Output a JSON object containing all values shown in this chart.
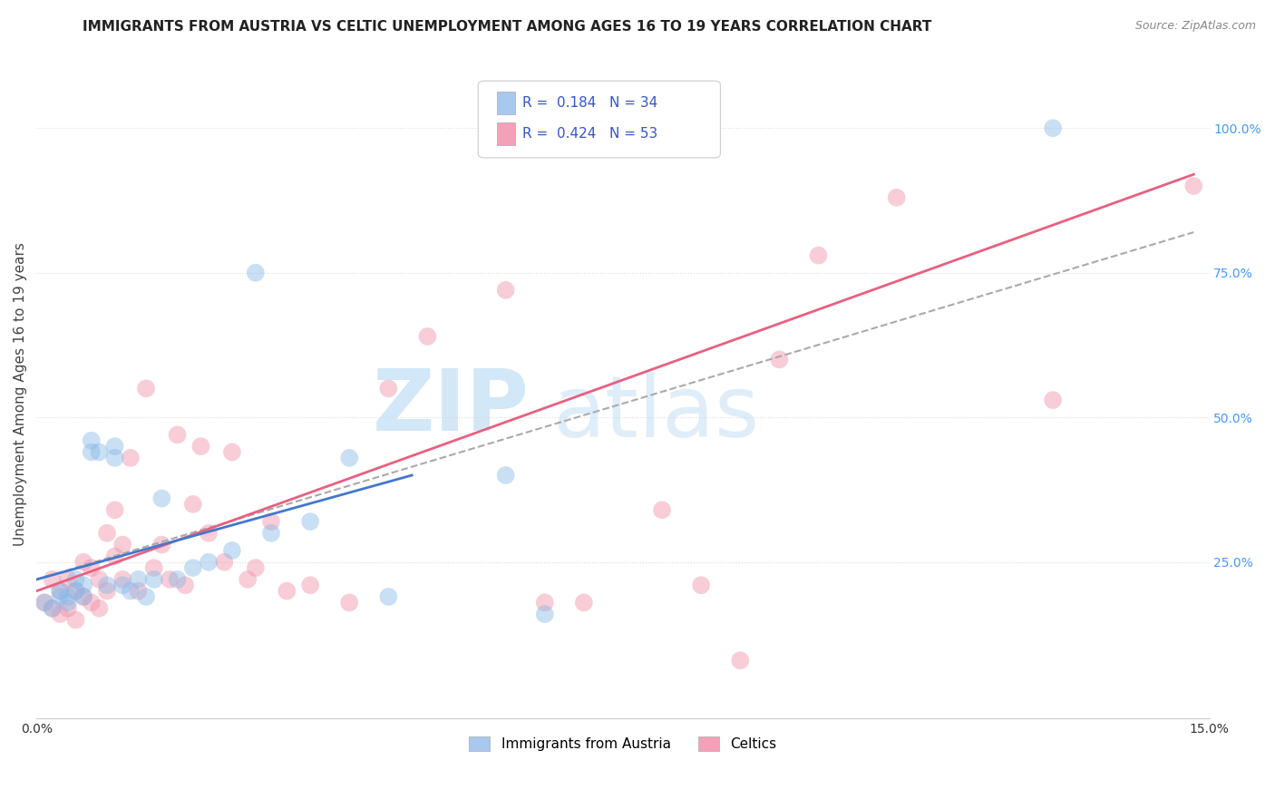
{
  "title": "IMMIGRANTS FROM AUSTRIA VS CELTIC UNEMPLOYMENT AMONG AGES 16 TO 19 YEARS CORRELATION CHART",
  "source": "Source: ZipAtlas.com",
  "ylabel": "Unemployment Among Ages 16 to 19 years",
  "xlim": [
    0.0,
    0.15
  ],
  "ylim": [
    -0.02,
    1.1
  ],
  "xtick_labels": [
    "0.0%",
    "15.0%"
  ],
  "ytick_labels": [
    "25.0%",
    "50.0%",
    "75.0%",
    "100.0%"
  ],
  "ytick_values": [
    0.25,
    0.5,
    0.75,
    1.0
  ],
  "xtick_values": [
    0.0,
    0.15
  ],
  "legend_entries": [
    {
      "label": "Immigrants from Austria",
      "color": "#a8c8ee",
      "R": 0.184,
      "N": 34
    },
    {
      "label": "Celtics",
      "color": "#f4a0b8",
      "R": 0.424,
      "N": 53
    }
  ],
  "blue_scatter_x": [
    0.001,
    0.002,
    0.003,
    0.003,
    0.004,
    0.004,
    0.005,
    0.005,
    0.006,
    0.006,
    0.007,
    0.007,
    0.008,
    0.009,
    0.01,
    0.01,
    0.011,
    0.012,
    0.013,
    0.014,
    0.015,
    0.016,
    0.018,
    0.02,
    0.022,
    0.025,
    0.028,
    0.03,
    0.035,
    0.04,
    0.045,
    0.06,
    0.065,
    0.13
  ],
  "blue_scatter_y": [
    0.18,
    0.17,
    0.2,
    0.19,
    0.19,
    0.18,
    0.2,
    0.22,
    0.21,
    0.19,
    0.44,
    0.46,
    0.44,
    0.21,
    0.43,
    0.45,
    0.21,
    0.2,
    0.22,
    0.19,
    0.22,
    0.36,
    0.22,
    0.24,
    0.25,
    0.27,
    0.75,
    0.3,
    0.32,
    0.43,
    0.19,
    0.4,
    0.16,
    1.0
  ],
  "pink_scatter_x": [
    0.001,
    0.002,
    0.002,
    0.003,
    0.003,
    0.004,
    0.004,
    0.005,
    0.005,
    0.006,
    0.006,
    0.007,
    0.007,
    0.008,
    0.008,
    0.009,
    0.009,
    0.01,
    0.01,
    0.011,
    0.011,
    0.012,
    0.013,
    0.014,
    0.015,
    0.016,
    0.017,
    0.018,
    0.019,
    0.02,
    0.021,
    0.022,
    0.024,
    0.025,
    0.027,
    0.028,
    0.03,
    0.032,
    0.035,
    0.04,
    0.045,
    0.05,
    0.06,
    0.065,
    0.07,
    0.08,
    0.085,
    0.09,
    0.095,
    0.1,
    0.11,
    0.13,
    0.148
  ],
  "pink_scatter_y": [
    0.18,
    0.17,
    0.22,
    0.16,
    0.2,
    0.22,
    0.17,
    0.15,
    0.2,
    0.19,
    0.25,
    0.18,
    0.24,
    0.17,
    0.22,
    0.2,
    0.3,
    0.26,
    0.34,
    0.22,
    0.28,
    0.43,
    0.2,
    0.55,
    0.24,
    0.28,
    0.22,
    0.47,
    0.21,
    0.35,
    0.45,
    0.3,
    0.25,
    0.44,
    0.22,
    0.24,
    0.32,
    0.2,
    0.21,
    0.18,
    0.55,
    0.64,
    0.72,
    0.18,
    0.18,
    0.34,
    0.21,
    0.08,
    0.6,
    0.78,
    0.88,
    0.53,
    0.9
  ],
  "blue_line_x": [
    0.0,
    0.048
  ],
  "blue_line_y": [
    0.22,
    0.4
  ],
  "pink_line_x": [
    0.0,
    0.148
  ],
  "pink_line_y": [
    0.2,
    0.92
  ],
  "dashed_line_x": [
    0.0,
    0.148
  ],
  "dashed_line_y": [
    0.22,
    0.82
  ],
  "watermark_zip": "ZIP",
  "watermark_atlas": "atlas",
  "title_fontsize": 11,
  "axis_label_fontsize": 11,
  "tick_fontsize": 10,
  "scatter_size": 200,
  "scatter_alpha": 0.45,
  "blue_color": "#88b8e8",
  "pink_color": "#f090a8",
  "blue_line_color": "#4478cc",
  "pink_line_color": "#e86080",
  "dashed_line_color": "#aaaaaa",
  "right_ytick_color": "#4499ff",
  "grid_color": "#dddddd",
  "background_color": "#ffffff"
}
